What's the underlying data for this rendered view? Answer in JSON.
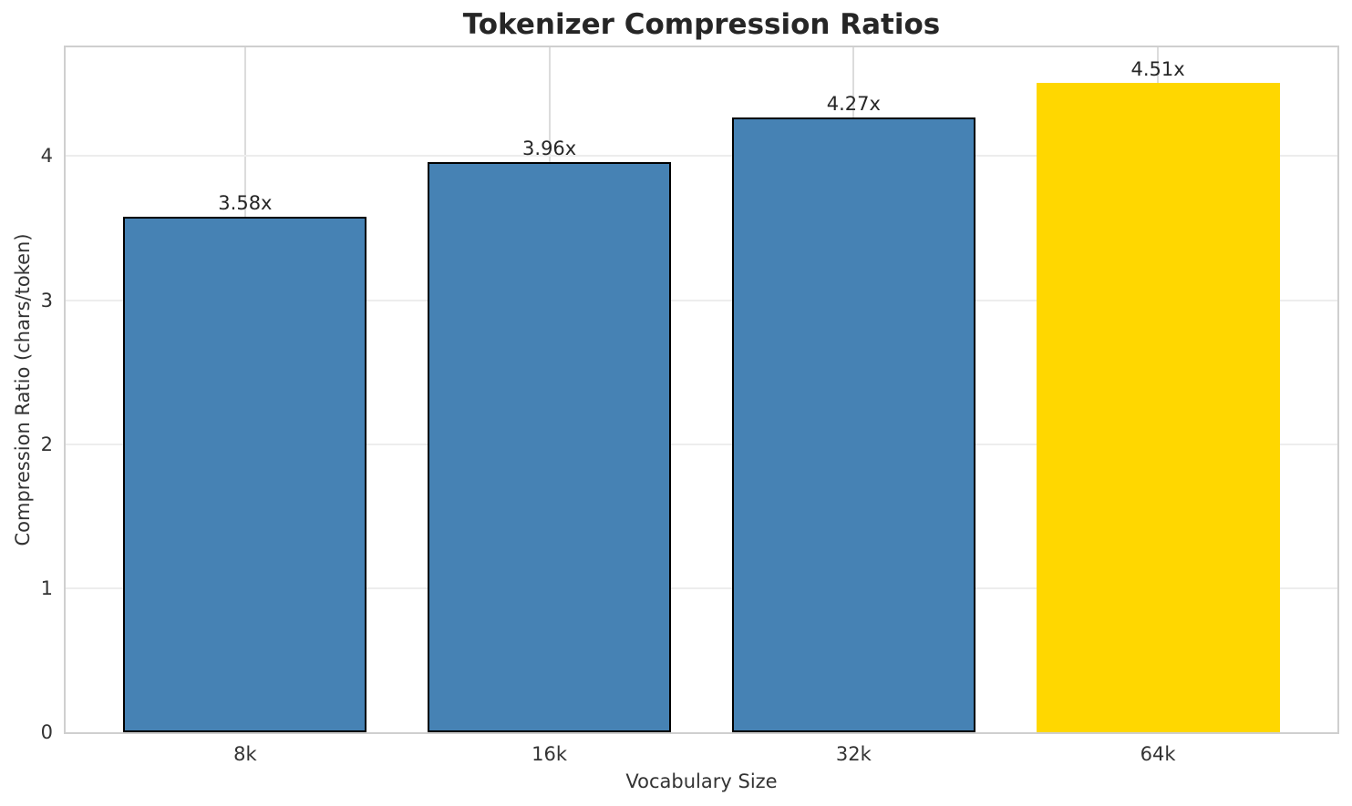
{
  "chart_data": {
    "type": "bar",
    "title": "Tokenizer Compression Ratios",
    "xlabel": "Vocabulary Size",
    "ylabel": "Compression Ratio (chars/token)",
    "categories": [
      "8k",
      "16k",
      "32k",
      "64k"
    ],
    "values": [
      3.58,
      3.96,
      4.27,
      4.51
    ],
    "bar_labels": [
      "3.58x",
      "3.96x",
      "4.27x",
      "4.51x"
    ],
    "ylim": [
      0,
      4.755
    ],
    "yticks": [
      0,
      1,
      2,
      3,
      4
    ],
    "grid": true,
    "legend": false,
    "bar_width_fraction": 0.8,
    "bar_colors": [
      "#4682B4",
      "#4682B4",
      "#4682B4",
      "#FFD700"
    ],
    "bar_edge_colors": [
      "#000000",
      "#000000",
      "#000000",
      "none"
    ],
    "highlight_index": 3
  },
  "colors": {
    "background": "#ffffff",
    "bar_default": "#4682B4",
    "bar_highlight": "#FFD700",
    "bar_edge": "#000000",
    "spine": "#cfcfcf",
    "grid_horizontal": "#ededed",
    "grid_vertical": "#dcdcdc",
    "title_text": "#262626",
    "label_text": "#333333"
  }
}
